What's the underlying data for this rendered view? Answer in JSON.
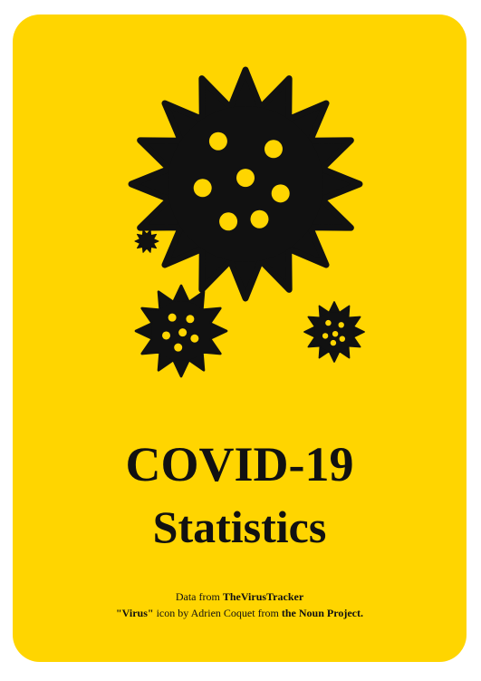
{
  "colors": {
    "card_background": "#FFD500",
    "ink": "#111111",
    "page_background": "#ffffff"
  },
  "icons": [
    "large-virus-icon",
    "tiny-virus-icon",
    "medium-virus-icon",
    "small-virus-icon"
  ],
  "title": {
    "line1": "COVID-19",
    "line2": "Statistics"
  },
  "credits": {
    "line1_prefix": "Data from ",
    "line1_source": "TheVirusTracker",
    "line2_icon_name": "\"Virus\"",
    "line2_middle": " icon by Adrien Coquet from ",
    "line2_project": "the Noun Project."
  }
}
